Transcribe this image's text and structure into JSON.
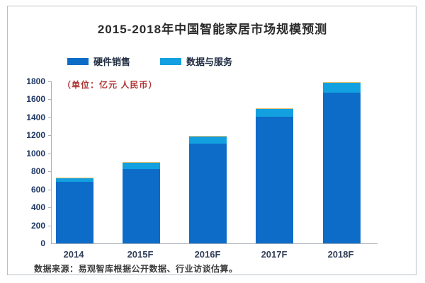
{
  "chart_data": {
    "type": "bar",
    "stacked": true,
    "title": "2015-2018年中国智能家居市场规模预测",
    "unit_note": "（单位：亿元 人民币）",
    "source_note": "数据来源：易观智库根据公开数据、行业访谈估算。",
    "categories": [
      "2014",
      "2015F",
      "2016F",
      "2017F",
      "2018F"
    ],
    "series": [
      {
        "name": "硬件销售",
        "color": "#0d6cc8",
        "values": [
          680,
          825,
          1110,
          1405,
          1675
        ]
      },
      {
        "name": "数据与服务",
        "color": "#12a0e0",
        "values": [
          50,
          75,
          90,
          95,
          120
        ]
      }
    ],
    "totals": [
      730,
      900,
      1200,
      1500,
      1795
    ],
    "ylabel": "",
    "xlabel": "",
    "ylim": [
      0,
      1800
    ],
    "yticks": [
      0,
      200,
      400,
      600,
      800,
      1000,
      1200,
      1400,
      1600,
      1800
    ],
    "grid": false,
    "legend_position": "top-left",
    "bar_top_edge_color": "#e6c06a",
    "axis_color": "#a9b0b8"
  }
}
